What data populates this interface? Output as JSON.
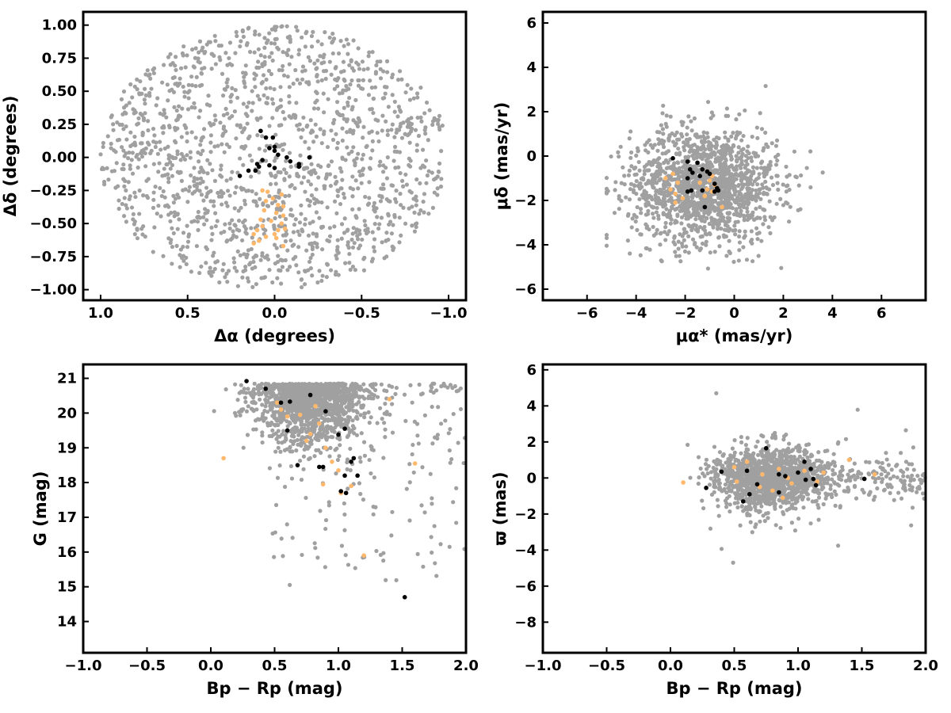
{
  "colors": {
    "field": "#a0a0a0",
    "group_black": "#000000",
    "group_orange": "#ffb86c",
    "frame": "#000000"
  },
  "chart_data": [
    {
      "id": "sky-positions",
      "type": "scatter",
      "xlabel": "Δα (degrees)",
      "ylabel": "Δδ (degrees)",
      "xlim": [
        1.1,
        -1.1
      ],
      "ylim": [
        -1.08,
        1.1
      ],
      "x_inverted": true,
      "xticks": [
        1.0,
        0.5,
        0.0,
        -0.5,
        -1.0
      ],
      "xtick_labels": [
        "1.0",
        "0.5",
        "0.0",
        "−0.5",
        "−1.0"
      ],
      "yticks": [
        1.0,
        0.75,
        0.5,
        0.25,
        0.0,
        -0.25,
        -0.5,
        -0.75,
        -1.0
      ],
      "ytick_labels": [
        "1.00",
        "0.75",
        "0.50",
        "0.25",
        "0.00",
        "−0.25",
        "−0.50",
        "−0.75",
        "−1.00"
      ],
      "grid": false,
      "legend": "none",
      "field_distribution": {
        "shape": "disk",
        "center": [
          0.0,
          0.0
        ],
        "radius": 1.0,
        "approx_count": 1500
      },
      "series": [
        {
          "color_key": "group_black",
          "points": [
            [
              0.08,
              0.2
            ],
            [
              0.05,
              0.15
            ],
            [
              0.01,
              0.15
            ],
            [
              0.0,
              0.08
            ],
            [
              0.03,
              0.07
            ],
            [
              0.0,
              0.05
            ],
            [
              -0.02,
              0.02
            ],
            [
              -0.07,
              0.0
            ],
            [
              -0.09,
              -0.03
            ],
            [
              -0.14,
              -0.05
            ],
            [
              -0.14,
              -0.07
            ],
            [
              -0.2,
              0.0
            ],
            [
              0.07,
              -0.02
            ],
            [
              0.1,
              -0.05
            ],
            [
              0.11,
              -0.1
            ],
            [
              0.0,
              -0.08
            ],
            [
              0.03,
              -0.06
            ],
            [
              0.15,
              -0.1
            ],
            [
              0.2,
              -0.14
            ],
            [
              0.09,
              -0.07
            ]
          ]
        },
        {
          "color_key": "group_orange",
          "points": [
            [
              0.07,
              -0.25
            ],
            [
              0.04,
              -0.26
            ],
            [
              -0.04,
              -0.28
            ],
            [
              0.01,
              -0.31
            ],
            [
              0.05,
              -0.33
            ],
            [
              -0.02,
              -0.36
            ],
            [
              -0.05,
              -0.37
            ],
            [
              0.06,
              -0.4
            ],
            [
              -0.01,
              -0.42
            ],
            [
              -0.05,
              -0.44
            ],
            [
              0.08,
              -0.47
            ],
            [
              0.02,
              -0.48
            ],
            [
              -0.04,
              -0.5
            ],
            [
              0.1,
              -0.55
            ],
            [
              -0.02,
              -0.55
            ],
            [
              -0.06,
              -0.54
            ],
            [
              0.12,
              -0.58
            ],
            [
              0.05,
              -0.6
            ],
            [
              -0.01,
              -0.61
            ],
            [
              0.09,
              -0.63
            ],
            [
              0.12,
              -0.65
            ],
            [
              -0.05,
              -0.67
            ],
            [
              0.0,
              -0.58
            ],
            [
              0.07,
              -0.52
            ]
          ]
        }
      ]
    },
    {
      "id": "proper-motions",
      "type": "scatter",
      "xlabel": "μα* (mas/yr)",
      "ylabel": "μδ (mas/yr)",
      "xlim": [
        -7.8,
        7.8
      ],
      "ylim": [
        -6.5,
        6.5
      ],
      "xticks": [
        -6,
        -4,
        -2,
        0,
        2,
        4,
        6
      ],
      "xtick_labels": [
        "−6",
        "−4",
        "−2",
        "0",
        "2",
        "4",
        "6"
      ],
      "yticks": [
        6,
        4,
        2,
        0,
        -2,
        -4,
        -6
      ],
      "ytick_labels": [
        "6",
        "4",
        "2",
        "0",
        "−2",
        "−4",
        "−6"
      ],
      "grid": false,
      "legend": "none",
      "field_distribution": {
        "shape": "blob",
        "center": [
          -1.2,
          -1.3
        ],
        "spread": [
          1.5,
          1.3
        ],
        "approx_count": 1500
      },
      "series": [
        {
          "color_key": "group_black",
          "points": [
            [
              -2.5,
              -0.1
            ],
            [
              -1.9,
              -0.25
            ],
            [
              -1.5,
              -0.3
            ],
            [
              -1.8,
              -0.6
            ],
            [
              -1.7,
              -0.75
            ],
            [
              -1.3,
              -0.6
            ],
            [
              -1.1,
              -0.7
            ],
            [
              -1.4,
              -0.9
            ],
            [
              -1.9,
              -1.0
            ],
            [
              -0.8,
              -1.25
            ],
            [
              -0.7,
              -1.45
            ],
            [
              -0.8,
              -1.6
            ],
            [
              -1.3,
              -1.55
            ],
            [
              -1.9,
              -1.6
            ],
            [
              -1.75,
              -1.55
            ],
            [
              -1.2,
              -2.3
            ],
            [
              -0.65,
              -1.55
            ],
            [
              -1.0,
              -0.8
            ]
          ]
        },
        {
          "color_key": "group_orange",
          "points": [
            [
              -2.5,
              -0.8
            ],
            [
              -2.8,
              -1.0
            ],
            [
              -2.3,
              -1.2
            ],
            [
              -2.6,
              -1.5
            ],
            [
              -2.4,
              -1.7
            ],
            [
              -2.1,
              -1.9
            ],
            [
              -2.4,
              -2.1
            ],
            [
              -1.1,
              -0.7
            ],
            [
              -0.9,
              -0.9
            ],
            [
              -1.0,
              -1.1
            ],
            [
              -0.8,
              -1.3
            ],
            [
              -1.4,
              -1.2
            ],
            [
              -1.1,
              -1.5
            ],
            [
              -0.5,
              -2.3
            ],
            [
              -1.2,
              -1.8
            ],
            [
              -0.9,
              -1.6
            ]
          ]
        }
      ]
    },
    {
      "id": "colour-magnitude",
      "type": "scatter",
      "xlabel": "Bp − Rp (mag)",
      "ylabel": "G (mag)",
      "xlim": [
        -1.0,
        2.0
      ],
      "ylim": [
        13.1,
        21.4
      ],
      "y_inverted": false,
      "xticks": [
        -1.0,
        -0.5,
        0.0,
        0.5,
        1.0,
        1.5,
        2.0
      ],
      "xtick_labels": [
        "−1.0",
        "−0.5",
        "0.0",
        "0.5",
        "1.0",
        "1.5",
        "2.0"
      ],
      "yticks": [
        21,
        20,
        19,
        18,
        17,
        16,
        15,
        14
      ],
      "ytick_labels": [
        "21",
        "20",
        "19",
        "18",
        "17",
        "16",
        "15",
        "14"
      ],
      "grid": false,
      "legend": "none",
      "field_distribution": {
        "shape": "cmd",
        "approx_count": 1500
      },
      "series": [
        {
          "color_key": "group_black",
          "points": [
            [
              0.28,
              20.92
            ],
            [
              0.43,
              20.7
            ],
            [
              0.78,
              20.52
            ],
            [
              0.55,
              20.3
            ],
            [
              0.62,
              20.33
            ],
            [
              0.6,
              19.5
            ],
            [
              0.68,
              18.5
            ],
            [
              0.85,
              18.45
            ],
            [
              0.88,
              18.45
            ],
            [
              0.9,
              20.05
            ],
            [
              1.0,
              19.38
            ],
            [
              1.05,
              19.55
            ],
            [
              1.05,
              18.2
            ],
            [
              1.1,
              18.6
            ],
            [
              1.12,
              18.7
            ],
            [
              1.15,
              18.2
            ],
            [
              1.02,
              17.75
            ],
            [
              1.06,
              17.7
            ],
            [
              1.52,
              14.7
            ]
          ]
        },
        {
          "color_key": "group_orange",
          "points": [
            [
              0.1,
              18.7
            ],
            [
              0.52,
              20.3
            ],
            [
              0.55,
              20.1
            ],
            [
              0.6,
              19.9
            ],
            [
              0.7,
              19.95
            ],
            [
              0.78,
              19.4
            ],
            [
              0.82,
              20.2
            ],
            [
              0.85,
              19.7
            ],
            [
              0.9,
              19.0
            ],
            [
              0.95,
              18.6
            ],
            [
              1.0,
              18.35
            ],
            [
              1.02,
              17.7
            ],
            [
              0.88,
              17.95
            ],
            [
              1.1,
              17.9
            ],
            [
              1.2,
              15.9
            ],
            [
              1.6,
              18.55
            ],
            [
              1.4,
              20.4
            ],
            [
              0.75,
              19.2
            ]
          ]
        }
      ]
    },
    {
      "id": "parallax",
      "type": "scatter",
      "xlabel": "Bp − Rp (mag)",
      "ylabel": "ϖ (mas)",
      "xlim": [
        -1.0,
        2.0
      ],
      "ylim": [
        -9.7,
        6.3
      ],
      "xticks": [
        -1.0,
        -0.5,
        0.0,
        0.5,
        1.0,
        1.5,
        2.0
      ],
      "xtick_labels": [
        "−1.0",
        "−0.5",
        "0.0",
        "0.5",
        "1.0",
        "1.5",
        "2.0"
      ],
      "yticks": [
        6,
        4,
        2,
        0,
        -2,
        -4,
        -6,
        -8
      ],
      "ytick_labels": [
        "6",
        "4",
        "2",
        "0",
        "−2",
        "−4",
        "−6",
        "−8"
      ],
      "grid": false,
      "legend": "none",
      "field_distribution": {
        "shape": "parallax",
        "approx_count": 1500
      },
      "series": [
        {
          "color_key": "group_black",
          "points": [
            [
              0.28,
              -0.55
            ],
            [
              0.4,
              0.35
            ],
            [
              0.57,
              -1.3
            ],
            [
              0.6,
              0.4
            ],
            [
              0.62,
              -0.9
            ],
            [
              0.68,
              -0.35
            ],
            [
              0.75,
              1.65
            ],
            [
              0.85,
              -0.8
            ],
            [
              0.85,
              0.2
            ],
            [
              0.9,
              0.1
            ],
            [
              1.0,
              0.3
            ],
            [
              1.05,
              0.9
            ],
            [
              1.06,
              -0.1
            ],
            [
              1.1,
              0.5
            ],
            [
              1.12,
              -0.05
            ],
            [
              1.14,
              -0.4
            ],
            [
              1.52,
              -0.05
            ]
          ]
        },
        {
          "color_key": "group_orange",
          "points": [
            [
              0.1,
              -0.25
            ],
            [
              0.5,
              0.6
            ],
            [
              0.52,
              -0.2
            ],
            [
              0.6,
              0.9
            ],
            [
              0.7,
              -0.5
            ],
            [
              0.72,
              0.2
            ],
            [
              0.8,
              -0.7
            ],
            [
              0.85,
              0.5
            ],
            [
              0.88,
              -1.1
            ],
            [
              0.92,
              0.0
            ],
            [
              0.95,
              -0.3
            ],
            [
              1.05,
              0.4
            ],
            [
              1.15,
              -0.2
            ],
            [
              1.2,
              0.3
            ],
            [
              1.4,
              1.0
            ],
            [
              1.6,
              0.2
            ]
          ]
        }
      ]
    }
  ]
}
